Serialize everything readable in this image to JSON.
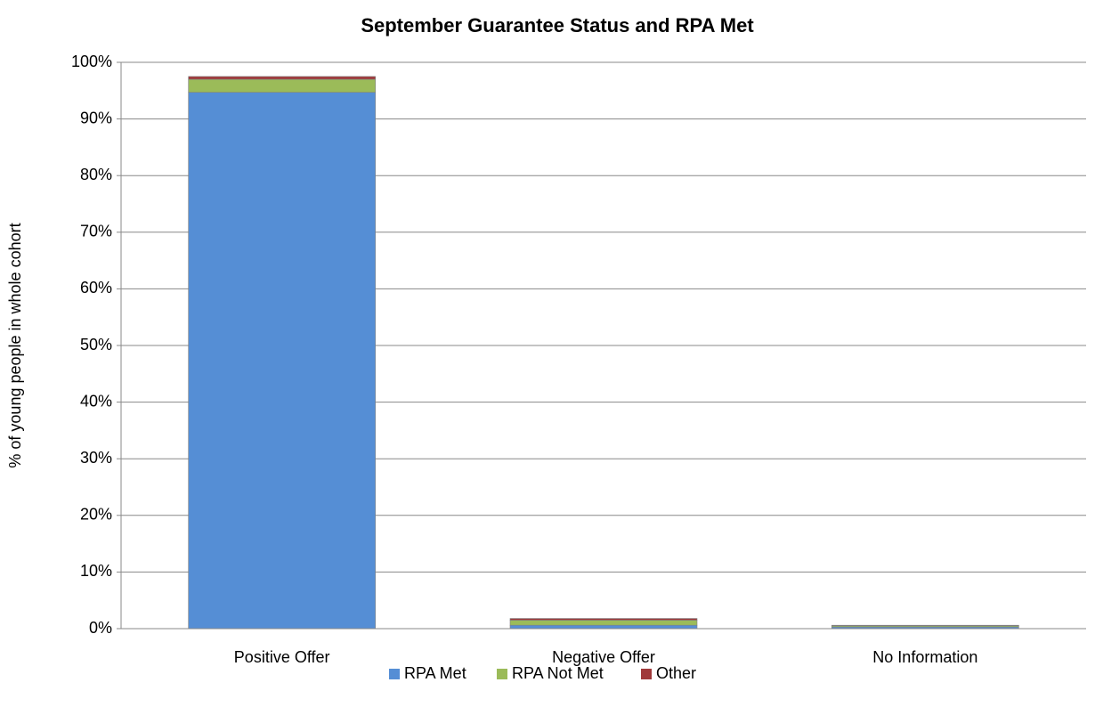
{
  "chart_data": {
    "type": "stacked_bar",
    "title": "September Guarantee Status and RPA Met",
    "y_label": "% of young people in whole cohort",
    "categories": [
      "Positive Offer",
      "Negative Offer",
      "No Information"
    ],
    "series": [
      {
        "name": "RPA Met",
        "color": "#558ed5",
        "values": [
          94.7,
          0.6,
          0.3
        ]
      },
      {
        "name": "RPA Not Met",
        "color": "#9bbb59",
        "values": [
          2.3,
          0.9,
          0.2
        ]
      },
      {
        "name": "Other",
        "color": "#a0393a",
        "values": [
          0.5,
          0.3,
          0.1
        ]
      }
    ],
    "ylim": [
      0,
      100
    ],
    "yticks": [
      {
        "value": 0,
        "label": "0%"
      },
      {
        "value": 10,
        "label": "10%"
      },
      {
        "value": 20,
        "label": "20%"
      },
      {
        "value": 30,
        "label": "30%"
      },
      {
        "value": 40,
        "label": "40%"
      },
      {
        "value": 50,
        "label": "50%"
      },
      {
        "value": 60,
        "label": "60%"
      },
      {
        "value": 70,
        "label": "70%"
      },
      {
        "value": 80,
        "label": "80%"
      },
      {
        "value": 90,
        "label": "90%"
      },
      {
        "value": 100,
        "label": "100%"
      }
    ],
    "grid": true,
    "legend": "bottom"
  }
}
